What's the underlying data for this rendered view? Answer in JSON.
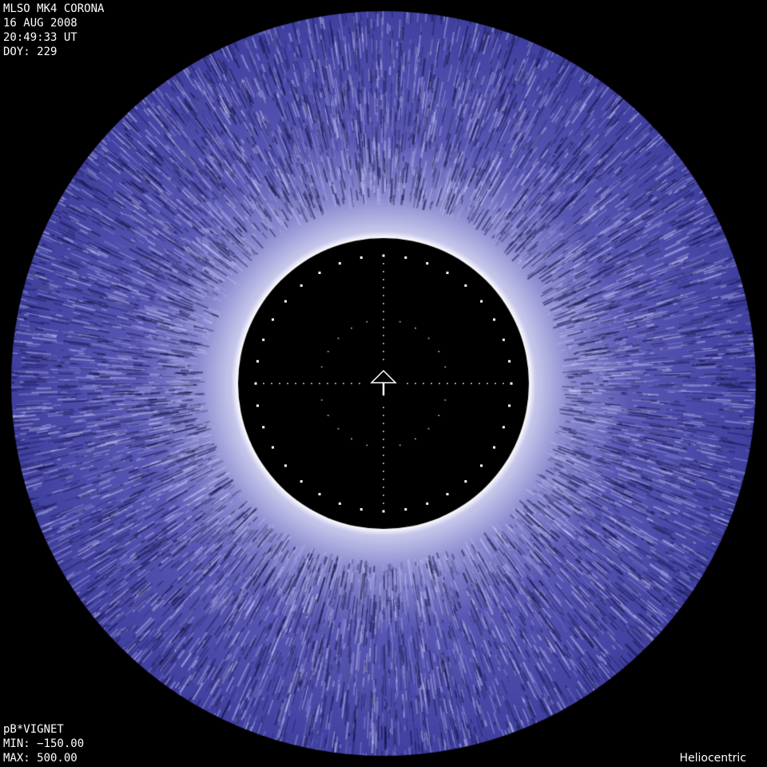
{
  "header": {
    "instrument": "MLSO MK4 CORONA",
    "date": "16 AUG 2008",
    "time": "20:49:33 UT",
    "doy": "DOY: 229"
  },
  "footer": {
    "product": "pB*VIGNET",
    "min": "MIN: −150.00",
    "max": "MAX: 500.00",
    "frame": "Heliocentric"
  },
  "colors": {
    "corona": "#4a4aa8",
    "corona_bright": "#c8c8ec",
    "occulter": "#000000",
    "limb": "#ffffff"
  },
  "icons": {
    "center": "north-arrow-icon"
  }
}
